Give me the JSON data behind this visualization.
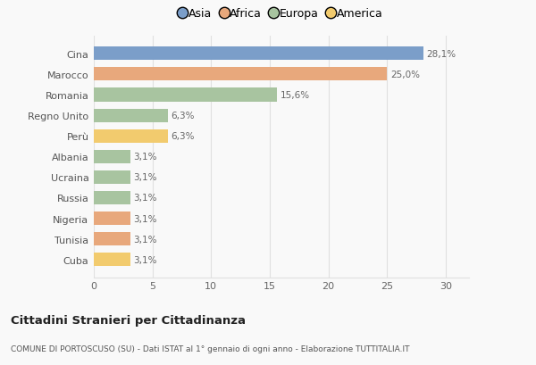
{
  "categories": [
    "Cuba",
    "Tunisia",
    "Nigeria",
    "Russia",
    "Ucraina",
    "Albania",
    "Perù",
    "Regno Unito",
    "Romania",
    "Marocco",
    "Cina"
  ],
  "values": [
    3.1,
    3.1,
    3.1,
    3.1,
    3.1,
    3.1,
    6.3,
    6.3,
    15.6,
    25.0,
    28.1
  ],
  "labels": [
    "3,1%",
    "3,1%",
    "3,1%",
    "3,1%",
    "3,1%",
    "3,1%",
    "6,3%",
    "6,3%",
    "15,6%",
    "25,0%",
    "28,1%"
  ],
  "colors": [
    "#f2cb6e",
    "#e8a87c",
    "#e8a87c",
    "#a8c4a0",
    "#a8c4a0",
    "#a8c4a0",
    "#f2cb6e",
    "#a8c4a0",
    "#a8c4a0",
    "#e8a87c",
    "#7b9ec9"
  ],
  "legend_labels": [
    "Asia",
    "Africa",
    "Europa",
    "America"
  ],
  "legend_colors": [
    "#7b9ec9",
    "#e8a87c",
    "#a8c4a0",
    "#f2cb6e"
  ],
  "xlim": [
    0,
    32
  ],
  "xticks": [
    0,
    5,
    10,
    15,
    20,
    25,
    30
  ],
  "title": "Cittadini Stranieri per Cittadinanza",
  "subtitle": "COMUNE DI PORTOSCUSO (SU) - Dati ISTAT al 1° gennaio di ogni anno - Elaborazione TUTTITALIA.IT",
  "bg_color": "#f9f9f9",
  "grid_color": "#e0e0e0"
}
